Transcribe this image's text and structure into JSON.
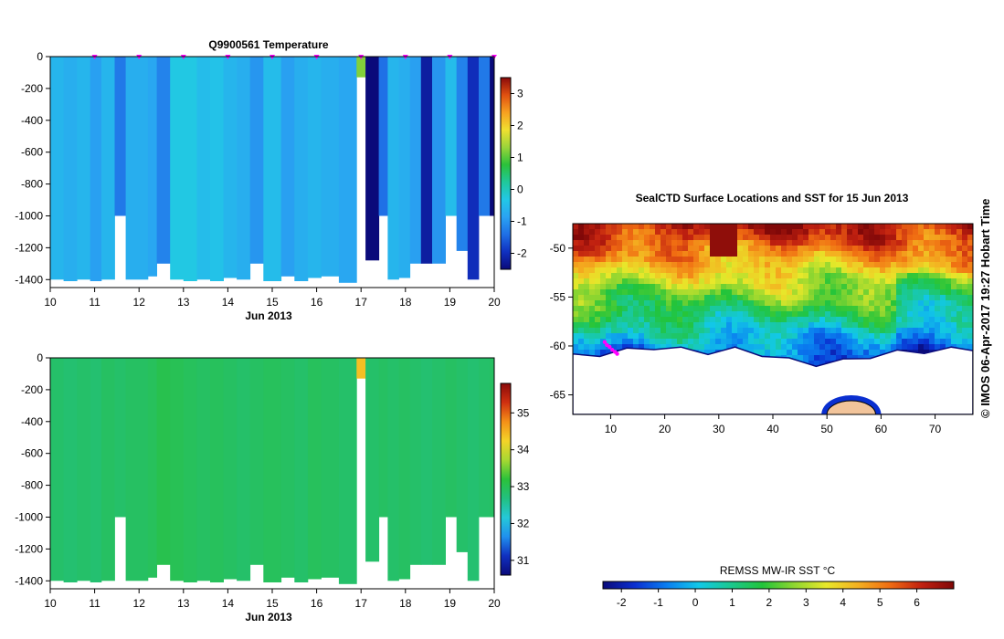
{
  "colors": {
    "temp_scale": [
      "#0a0a7a",
      "#1030c0",
      "#1f6fe6",
      "#2aa3f2",
      "#22c8e6",
      "#20c89a",
      "#2bc13a",
      "#9ad43a",
      "#f0e030",
      "#f7a020",
      "#e05010",
      "#8a0a0a"
    ],
    "sal_scale": [
      "#0a0a7a",
      "#1030c0",
      "#2090ee",
      "#25c8d8",
      "#22c080",
      "#2bc13a",
      "#a8d832",
      "#f4d428",
      "#f49018",
      "#d03010",
      "#8a0a0a"
    ],
    "sst_scale": [
      "#0a0a7a",
      "#0a2fd0",
      "#0a7ef0",
      "#12c8e8",
      "#1bc890",
      "#22c43a",
      "#8fd630",
      "#e8e82a",
      "#f4b020",
      "#f06c12",
      "#c02010",
      "#800808"
    ],
    "marker": "#ff00ff"
  },
  "chart_data": [
    {
      "type": "heatmap",
      "name": "temperature-profile",
      "title": "Q9900561  Temperature",
      "xlabel": "Jun 2013",
      "ylabel": "",
      "xlim": [
        10,
        20
      ],
      "ylim": [
        -1450,
        0
      ],
      "x_ticks": [
        "10",
        "11",
        "12",
        "13",
        "14",
        "15",
        "16",
        "17",
        "18",
        "19",
        "20"
      ],
      "y_ticks": [
        "0",
        "-200",
        "-400",
        "-600",
        "-800",
        "-1000",
        "-1200",
        "-1400"
      ],
      "colorbar": {
        "range": [
          -2.5,
          3.5
        ],
        "ticks": [
          "-2",
          "-1",
          "0",
          "1",
          "2",
          "3"
        ]
      },
      "surface_markers": [
        11.0,
        12.0,
        13.0,
        14.0,
        15.0,
        16.0,
        17.0,
        18.0,
        19.0,
        20.0
      ],
      "profiles": [
        {
          "x0": 10.0,
          "x1": 10.3,
          "bottom": -1400,
          "value": -0.6
        },
        {
          "x0": 10.3,
          "x1": 10.6,
          "bottom": -1410,
          "value": -0.7
        },
        {
          "x0": 10.6,
          "x1": 10.9,
          "bottom": -1400,
          "value": -0.6
        },
        {
          "x0": 10.9,
          "x1": 11.15,
          "bottom": -1410,
          "value": -0.9
        },
        {
          "x0": 11.15,
          "x1": 11.45,
          "bottom": -1400,
          "value": -0.6
        },
        {
          "x0": 11.45,
          "x1": 11.7,
          "bottom": -1000,
          "value": -1.3
        },
        {
          "x0": 11.7,
          "x1": 12.2,
          "bottom": -1400,
          "value": -0.7
        },
        {
          "x0": 12.2,
          "x1": 12.4,
          "bottom": -1380,
          "value": -0.8
        },
        {
          "x0": 12.4,
          "x1": 12.7,
          "bottom": -1300,
          "value": -1.2
        },
        {
          "x0": 12.7,
          "x1": 13.0,
          "bottom": -1400,
          "value": -0.3
        },
        {
          "x0": 13.0,
          "x1": 13.3,
          "bottom": -1410,
          "value": -0.3
        },
        {
          "x0": 13.3,
          "x1": 13.6,
          "bottom": -1400,
          "value": -0.5
        },
        {
          "x0": 13.6,
          "x1": 13.9,
          "bottom": -1410,
          "value": -0.4
        },
        {
          "x0": 13.9,
          "x1": 14.2,
          "bottom": -1390,
          "value": -0.6
        },
        {
          "x0": 14.2,
          "x1": 14.5,
          "bottom": -1400,
          "value": -0.7
        },
        {
          "x0": 14.5,
          "x1": 14.8,
          "bottom": -1300,
          "value": -1.0
        },
        {
          "x0": 14.8,
          "x1": 15.2,
          "bottom": -1410,
          "value": -0.5
        },
        {
          "x0": 15.2,
          "x1": 15.5,
          "bottom": -1380,
          "value": -0.9
        },
        {
          "x0": 15.5,
          "x1": 15.8,
          "bottom": -1410,
          "value": -0.7
        },
        {
          "x0": 15.8,
          "x1": 16.1,
          "bottom": -1390,
          "value": -0.6
        },
        {
          "x0": 16.1,
          "x1": 16.5,
          "bottom": -1380,
          "value": -0.7
        },
        {
          "x0": 16.5,
          "x1": 16.9,
          "bottom": -1420,
          "value": -0.8
        },
        {
          "x0": 16.9,
          "x1": 17.1,
          "bottom": -130,
          "value": 1.2
        },
        {
          "x0": 17.1,
          "x1": 17.4,
          "bottom": -1280,
          "value": -2.5
        },
        {
          "x0": 17.4,
          "x1": 17.6,
          "bottom": -1000,
          "value": -1.4
        },
        {
          "x0": 17.6,
          "x1": 17.85,
          "bottom": -1400,
          "value": -0.6
        },
        {
          "x0": 17.85,
          "x1": 18.1,
          "bottom": -1390,
          "value": -0.7
        },
        {
          "x0": 18.1,
          "x1": 18.35,
          "bottom": -1300,
          "value": -0.9
        },
        {
          "x0": 18.35,
          "x1": 18.6,
          "bottom": -1300,
          "value": -2.2
        },
        {
          "x0": 18.6,
          "x1": 18.9,
          "bottom": -1300,
          "value": -1.0
        },
        {
          "x0": 18.9,
          "x1": 19.15,
          "bottom": -1000,
          "value": -0.5
        },
        {
          "x0": 19.15,
          "x1": 19.4,
          "bottom": -1220,
          "value": -1.2
        },
        {
          "x0": 19.4,
          "x1": 19.65,
          "bottom": -1400,
          "value": -2.0
        },
        {
          "x0": 19.65,
          "x1": 19.9,
          "bottom": -1000,
          "value": -1.3
        },
        {
          "x0": 19.9,
          "x1": 20.1,
          "bottom": -1000,
          "value": -2.6
        }
      ]
    },
    {
      "type": "heatmap",
      "name": "salinity-profile",
      "title": "",
      "xlabel": "Jun 2013",
      "ylabel": "",
      "xlim": [
        10,
        20
      ],
      "ylim": [
        -1450,
        0
      ],
      "x_ticks": [
        "10",
        "11",
        "12",
        "13",
        "14",
        "15",
        "16",
        "17",
        "18",
        "19",
        "20"
      ],
      "y_ticks": [
        "0",
        "-200",
        "-400",
        "-600",
        "-800",
        "-1000",
        "-1200",
        "-1400"
      ],
      "colorbar": {
        "range": [
          30.6,
          35.8
        ],
        "ticks": [
          "31",
          "32",
          "33",
          "34",
          "35"
        ]
      },
      "surface_markers": [],
      "profiles": [
        {
          "x0": 10.0,
          "x1": 10.3,
          "bottom": -1400,
          "value": 32.85
        },
        {
          "x0": 10.3,
          "x1": 10.6,
          "bottom": -1410,
          "value": 32.8
        },
        {
          "x0": 10.6,
          "x1": 10.9,
          "bottom": -1400,
          "value": 32.85
        },
        {
          "x0": 10.9,
          "x1": 11.15,
          "bottom": -1410,
          "value": 32.8
        },
        {
          "x0": 11.15,
          "x1": 11.45,
          "bottom": -1400,
          "value": 32.9
        },
        {
          "x0": 11.45,
          "x1": 11.7,
          "bottom": -1000,
          "value": 32.85
        },
        {
          "x0": 11.7,
          "x1": 12.2,
          "bottom": -1400,
          "value": 32.9
        },
        {
          "x0": 12.2,
          "x1": 12.4,
          "bottom": -1380,
          "value": 32.95
        },
        {
          "x0": 12.4,
          "x1": 12.7,
          "bottom": -1300,
          "value": 33.05
        },
        {
          "x0": 12.7,
          "x1": 13.0,
          "bottom": -1400,
          "value": 33.0
        },
        {
          "x0": 13.0,
          "x1": 13.3,
          "bottom": -1410,
          "value": 32.95
        },
        {
          "x0": 13.3,
          "x1": 13.6,
          "bottom": -1400,
          "value": 32.9
        },
        {
          "x0": 13.6,
          "x1": 13.9,
          "bottom": -1410,
          "value": 32.95
        },
        {
          "x0": 13.9,
          "x1": 14.2,
          "bottom": -1390,
          "value": 32.9
        },
        {
          "x0": 14.2,
          "x1": 14.5,
          "bottom": -1400,
          "value": 32.85
        },
        {
          "x0": 14.5,
          "x1": 14.8,
          "bottom": -1300,
          "value": 32.9
        },
        {
          "x0": 14.8,
          "x1": 15.2,
          "bottom": -1410,
          "value": 32.95
        },
        {
          "x0": 15.2,
          "x1": 15.5,
          "bottom": -1380,
          "value": 32.9
        },
        {
          "x0": 15.5,
          "x1": 15.8,
          "bottom": -1410,
          "value": 32.85
        },
        {
          "x0": 15.8,
          "x1": 16.1,
          "bottom": -1390,
          "value": 32.95
        },
        {
          "x0": 16.1,
          "x1": 16.5,
          "bottom": -1380,
          "value": 32.9
        },
        {
          "x0": 16.5,
          "x1": 16.9,
          "bottom": -1420,
          "value": 32.85
        },
        {
          "x0": 16.9,
          "x1": 17.1,
          "bottom": -130,
          "value": 34.4
        },
        {
          "x0": 17.1,
          "x1": 17.4,
          "bottom": -1280,
          "value": 32.85
        },
        {
          "x0": 17.4,
          "x1": 17.6,
          "bottom": -1000,
          "value": 32.9
        },
        {
          "x0": 17.6,
          "x1": 17.85,
          "bottom": -1400,
          "value": 32.85
        },
        {
          "x0": 17.85,
          "x1": 18.1,
          "bottom": -1390,
          "value": 32.9
        },
        {
          "x0": 18.1,
          "x1": 18.35,
          "bottom": -1300,
          "value": 32.85
        },
        {
          "x0": 18.35,
          "x1": 18.6,
          "bottom": -1300,
          "value": 32.8
        },
        {
          "x0": 18.6,
          "x1": 18.9,
          "bottom": -1300,
          "value": 32.85
        },
        {
          "x0": 18.9,
          "x1": 19.15,
          "bottom": -1000,
          "value": 32.9
        },
        {
          "x0": 19.15,
          "x1": 19.4,
          "bottom": -1220,
          "value": 32.85
        },
        {
          "x0": 19.4,
          "x1": 19.65,
          "bottom": -1400,
          "value": 32.8
        },
        {
          "x0": 19.65,
          "x1": 19.9,
          "bottom": -1000,
          "value": 32.85
        },
        {
          "x0": 19.9,
          "x1": 20.1,
          "bottom": -1000,
          "value": 32.9
        }
      ]
    },
    {
      "type": "heatmap",
      "name": "sst-map",
      "title": "SealCTD Surface Locations and SST for 15 Jun 2013",
      "xlabel": "",
      "ylabel": "",
      "xlim": [
        3,
        77
      ],
      "ylim": [
        -67,
        -47.5
      ],
      "x_ticks": [
        "10",
        "20",
        "30",
        "40",
        "50",
        "60",
        "70"
      ],
      "y_ticks": [
        "-50",
        "-55",
        "-60",
        "-65"
      ],
      "colorbar": {
        "label": "REMSS MW-IR SST °C",
        "range": [
          -2.5,
          7
        ],
        "ticks": [
          "-2",
          "-1",
          "0",
          "1",
          "2",
          "3",
          "4",
          "5",
          "6"
        ]
      },
      "ice_edge": [
        [
          3,
          -61
        ],
        [
          8,
          -60.8
        ],
        [
          13,
          -60.4
        ],
        [
          18,
          -60.1
        ],
        [
          23,
          -60.3
        ],
        [
          28,
          -60.6
        ],
        [
          33,
          -60.3
        ],
        [
          38,
          -60.8
        ],
        [
          43,
          -61.4
        ],
        [
          48,
          -61.8
        ],
        [
          53,
          -61.5
        ],
        [
          58,
          -61.0
        ],
        [
          63,
          -60.6
        ],
        [
          68,
          -60.5
        ],
        [
          73,
          -60.3
        ],
        [
          77,
          -60.2
        ]
      ],
      "antarctica": {
        "lon": 54.5,
        "lat": -67,
        "width_deg": 9,
        "height_deg": 1.4
      },
      "track_points": [
        [
          8.9,
          -59.6
        ],
        [
          9.3,
          -59.9
        ],
        [
          9.8,
          -60.1
        ],
        [
          10.3,
          -60.4
        ],
        [
          10.8,
          -60.6
        ],
        [
          11.2,
          -60.8
        ]
      ]
    }
  ],
  "credit": "© IMOS 06-Apr-2017 19:27 Hobart Time"
}
